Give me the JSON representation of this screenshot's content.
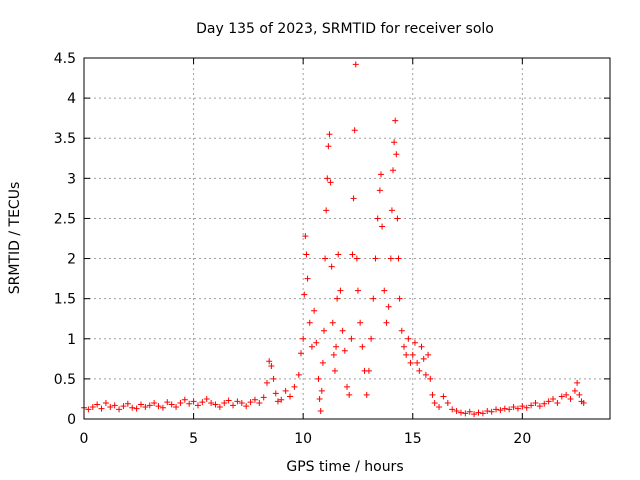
{
  "chart_data": {
    "type": "scatter",
    "title": "Day 135 of 2023, SRMTID for receiver solo",
    "xlabel": "GPS time / hours",
    "ylabel": "SRMTID / TECUs",
    "xlim": [
      0,
      24.0
    ],
    "ylim": [
      0,
      4.5
    ],
    "xticks": [
      0,
      5,
      10,
      15,
      20
    ],
    "xtick_labels": [
      "0",
      "5",
      "10",
      "15",
      "20"
    ],
    "yticks": [
      0,
      0.5,
      1,
      1.5,
      2,
      2.5,
      3,
      3.5,
      4,
      4.5
    ],
    "ytick_labels": [
      "0",
      "0.5",
      "1",
      "1.5",
      "2",
      "2.5",
      "3",
      "3.5",
      "4",
      "4.5"
    ],
    "grid": true,
    "marker": "+",
    "marker_color": "#ff0000",
    "series": [
      {
        "name": "SRMTID",
        "points": [
          [
            0.0,
            0.14
          ],
          [
            0.2,
            0.12
          ],
          [
            0.4,
            0.15
          ],
          [
            0.6,
            0.18
          ],
          [
            0.8,
            0.13
          ],
          [
            1.0,
            0.2
          ],
          [
            1.2,
            0.15
          ],
          [
            1.4,
            0.17
          ],
          [
            1.6,
            0.12
          ],
          [
            1.8,
            0.16
          ],
          [
            2.0,
            0.19
          ],
          [
            2.2,
            0.14
          ],
          [
            2.4,
            0.13
          ],
          [
            2.6,
            0.18
          ],
          [
            2.8,
            0.15
          ],
          [
            3.0,
            0.17
          ],
          [
            3.2,
            0.2
          ],
          [
            3.4,
            0.16
          ],
          [
            3.6,
            0.14
          ],
          [
            3.8,
            0.21
          ],
          [
            4.0,
            0.18
          ],
          [
            4.2,
            0.15
          ],
          [
            4.4,
            0.2
          ],
          [
            4.6,
            0.24
          ],
          [
            4.8,
            0.19
          ],
          [
            5.0,
            0.22
          ],
          [
            5.2,
            0.17
          ],
          [
            5.4,
            0.21
          ],
          [
            5.6,
            0.25
          ],
          [
            5.8,
            0.2
          ],
          [
            6.0,
            0.18
          ],
          [
            6.2,
            0.15
          ],
          [
            6.4,
            0.2
          ],
          [
            6.6,
            0.23
          ],
          [
            6.8,
            0.17
          ],
          [
            7.0,
            0.22
          ],
          [
            7.2,
            0.2
          ],
          [
            7.4,
            0.16
          ],
          [
            7.6,
            0.21
          ],
          [
            7.8,
            0.24
          ],
          [
            8.0,
            0.2
          ],
          [
            8.2,
            0.27
          ],
          [
            8.35,
            0.45
          ],
          [
            8.45,
            0.72
          ],
          [
            8.55,
            0.66
          ],
          [
            8.65,
            0.5
          ],
          [
            8.75,
            0.32
          ],
          [
            8.85,
            0.22
          ],
          [
            9.0,
            0.24
          ],
          [
            9.2,
            0.35
          ],
          [
            9.4,
            0.28
          ],
          [
            9.6,
            0.4
          ],
          [
            9.8,
            0.55
          ],
          [
            9.9,
            0.82
          ],
          [
            10.0,
            1.0
          ],
          [
            10.05,
            1.55
          ],
          [
            10.1,
            2.28
          ],
          [
            10.15,
            2.05
          ],
          [
            10.2,
            1.75
          ],
          [
            10.3,
            1.2
          ],
          [
            10.4,
            0.9
          ],
          [
            10.5,
            1.35
          ],
          [
            10.6,
            0.95
          ],
          [
            10.7,
            0.5
          ],
          [
            10.75,
            0.25
          ],
          [
            10.8,
            0.1
          ],
          [
            10.85,
            0.35
          ],
          [
            10.9,
            0.7
          ],
          [
            10.95,
            1.1
          ],
          [
            11.0,
            2.0
          ],
          [
            11.05,
            2.6
          ],
          [
            11.1,
            3.0
          ],
          [
            11.15,
            3.4
          ],
          [
            11.2,
            3.55
          ],
          [
            11.25,
            2.95
          ],
          [
            11.3,
            1.9
          ],
          [
            11.35,
            1.2
          ],
          [
            11.4,
            0.8
          ],
          [
            11.45,
            0.6
          ],
          [
            11.5,
            0.9
          ],
          [
            11.55,
            1.5
          ],
          [
            11.6,
            2.05
          ],
          [
            11.7,
            1.6
          ],
          [
            11.8,
            1.1
          ],
          [
            11.9,
            0.85
          ],
          [
            12.0,
            0.4
          ],
          [
            12.1,
            0.3
          ],
          [
            12.2,
            1.0
          ],
          [
            12.25,
            2.05
          ],
          [
            12.3,
            2.75
          ],
          [
            12.35,
            3.6
          ],
          [
            12.4,
            4.42
          ],
          [
            12.45,
            2.0
          ],
          [
            12.5,
            1.6
          ],
          [
            12.6,
            1.2
          ],
          [
            12.7,
            0.9
          ],
          [
            12.8,
            0.6
          ],
          [
            12.9,
            0.3
          ],
          [
            13.0,
            0.6
          ],
          [
            13.1,
            1.0
          ],
          [
            13.2,
            1.5
          ],
          [
            13.3,
            2.0
          ],
          [
            13.4,
            2.5
          ],
          [
            13.5,
            2.85
          ],
          [
            13.55,
            3.05
          ],
          [
            13.6,
            2.4
          ],
          [
            13.7,
            1.6
          ],
          [
            13.8,
            1.2
          ],
          [
            13.9,
            1.4
          ],
          [
            14.0,
            2.0
          ],
          [
            14.05,
            2.6
          ],
          [
            14.1,
            3.1
          ],
          [
            14.15,
            3.45
          ],
          [
            14.2,
            3.72
          ],
          [
            14.25,
            3.3
          ],
          [
            14.3,
            2.5
          ],
          [
            14.35,
            2.0
          ],
          [
            14.4,
            1.5
          ],
          [
            14.5,
            1.1
          ],
          [
            14.6,
            0.9
          ],
          [
            14.7,
            0.8
          ],
          [
            14.8,
            1.0
          ],
          [
            14.9,
            0.7
          ],
          [
            15.0,
            0.8
          ],
          [
            15.1,
            0.95
          ],
          [
            15.2,
            0.7
          ],
          [
            15.3,
            0.6
          ],
          [
            15.4,
            0.9
          ],
          [
            15.5,
            0.75
          ],
          [
            15.6,
            0.55
          ],
          [
            15.7,
            0.8
          ],
          [
            15.8,
            0.5
          ],
          [
            15.9,
            0.3
          ],
          [
            16.0,
            0.2
          ],
          [
            16.2,
            0.15
          ],
          [
            16.4,
            0.28
          ],
          [
            16.6,
            0.2
          ],
          [
            16.8,
            0.12
          ],
          [
            17.0,
            0.1
          ],
          [
            17.2,
            0.08
          ],
          [
            17.4,
            0.07
          ],
          [
            17.6,
            0.09
          ],
          [
            17.8,
            0.06
          ],
          [
            18.0,
            0.08
          ],
          [
            18.2,
            0.07
          ],
          [
            18.4,
            0.1
          ],
          [
            18.6,
            0.09
          ],
          [
            18.8,
            0.12
          ],
          [
            19.0,
            0.11
          ],
          [
            19.2,
            0.13
          ],
          [
            19.4,
            0.12
          ],
          [
            19.6,
            0.15
          ],
          [
            19.8,
            0.13
          ],
          [
            20.0,
            0.16
          ],
          [
            20.2,
            0.14
          ],
          [
            20.4,
            0.17
          ],
          [
            20.6,
            0.2
          ],
          [
            20.8,
            0.16
          ],
          [
            21.0,
            0.19
          ],
          [
            21.2,
            0.22
          ],
          [
            21.4,
            0.25
          ],
          [
            21.6,
            0.2
          ],
          [
            21.8,
            0.28
          ],
          [
            22.0,
            0.3
          ],
          [
            22.2,
            0.25
          ],
          [
            22.4,
            0.35
          ],
          [
            22.5,
            0.45
          ],
          [
            22.6,
            0.3
          ],
          [
            22.7,
            0.22
          ],
          [
            22.8,
            0.2
          ]
        ]
      }
    ]
  }
}
